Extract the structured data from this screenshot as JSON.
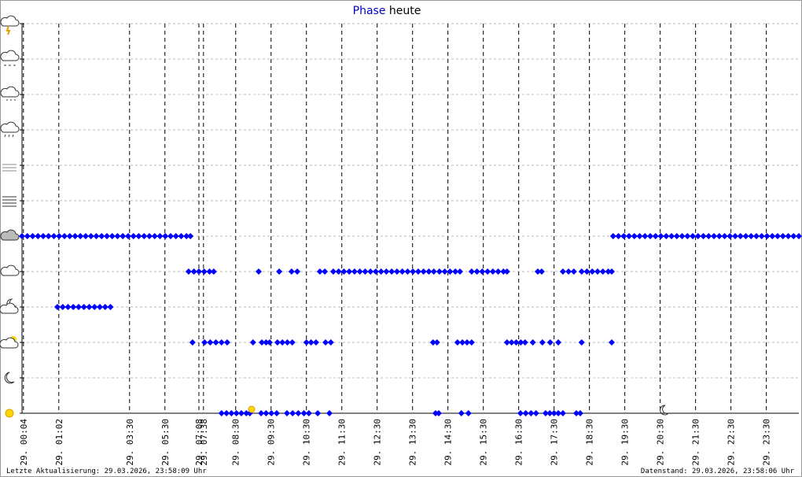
{
  "chart_data": {
    "type": "scatter",
    "title": {
      "highlight": "Phase",
      "rest": "heute"
    },
    "xlim": [
      0,
      21.96
    ],
    "ylim": [
      0,
      11
    ],
    "yticks": [
      0,
      1,
      2,
      3,
      4,
      5,
      6,
      7,
      8,
      9,
      10,
      11
    ],
    "xticks": [
      {
        "value": 0.04,
        "label": "29. 00:04"
      },
      {
        "value": 1.04,
        "label": "29. 01:02"
      },
      {
        "value": 3.04,
        "label": "29. 03:30"
      },
      {
        "value": 4.04,
        "label": "29. 05:30"
      },
      {
        "value": 5.0,
        "label": "29. 07:08"
      },
      {
        "value": 5.13,
        "label": "29. 07:38"
      },
      {
        "value": 6.04,
        "label": "29. 08:30"
      },
      {
        "value": 7.04,
        "label": "29. 09:30"
      },
      {
        "value": 8.04,
        "label": "29. 10:30"
      },
      {
        "value": 9.04,
        "label": "29. 11:30"
      },
      {
        "value": 10.04,
        "label": "29. 12:30"
      },
      {
        "value": 11.04,
        "label": "29. 13:30"
      },
      {
        "value": 12.04,
        "label": "29. 14:30"
      },
      {
        "value": 13.04,
        "label": "29. 15:30"
      },
      {
        "value": 14.04,
        "label": "29. 16:30"
      },
      {
        "value": 15.04,
        "label": "29. 17:30"
      },
      {
        "value": 16.04,
        "label": "29. 18:30"
      },
      {
        "value": 17.04,
        "label": "29. 19:30"
      },
      {
        "value": 18.04,
        "label": "29. 20:30"
      },
      {
        "value": 19.04,
        "label": "29. 21:30"
      },
      {
        "value": 20.04,
        "label": "29. 22:30"
      },
      {
        "value": 21.04,
        "label": "29. 23:30"
      }
    ],
    "grid": true,
    "color": "#0000ff",
    "series": [
      {
        "x": [
          0,
          0.15,
          0.3,
          0.45,
          0.6,
          0.75,
          0.9,
          1.05,
          1.2,
          1.35,
          1.5,
          1.65,
          1.8,
          1.95,
          2.1,
          2.25,
          2.4,
          2.55,
          2.7,
          2.85,
          3.0,
          3.15,
          3.3,
          3.45,
          3.6,
          3.75,
          3.9,
          4.05,
          4.2,
          4.35,
          4.5,
          4.65,
          4.76
        ],
        "values": [
          5,
          5,
          5,
          5,
          5,
          5,
          5,
          5,
          5,
          5,
          5,
          5,
          5,
          5,
          5,
          5,
          5,
          5,
          5,
          5,
          5,
          5,
          5,
          5,
          5,
          5,
          5,
          5,
          5,
          5,
          5,
          5,
          5
        ]
      },
      {
        "x": [
          1.0,
          1.15,
          1.3,
          1.45,
          1.6,
          1.75,
          1.9,
          2.05,
          2.2,
          2.35,
          2.5
        ],
        "values": [
          3,
          3,
          3,
          3,
          3,
          3,
          3,
          3,
          3,
          3,
          3
        ]
      },
      {
        "x": [
          4.71,
          4.86,
          5.0,
          5.15,
          5.3,
          5.42,
          6.69,
          7.27,
          7.62,
          7.78,
          8.42,
          8.56,
          8.8,
          8.95,
          9.1,
          9.25,
          9.4,
          9.55,
          9.7,
          9.85,
          10.0,
          10.15,
          10.3,
          10.45,
          10.6,
          10.75,
          10.9,
          11.05,
          11.2,
          11.35,
          11.5,
          11.64,
          11.8,
          11.95,
          12.1,
          12.25,
          12.38,
          12.71,
          12.86,
          13.01,
          13.16,
          13.31,
          13.46,
          13.61,
          13.71,
          14.58,
          14.69,
          15.29,
          15.45,
          15.6,
          15.82,
          15.97,
          16.12,
          16.27,
          16.42,
          16.57,
          16.67
        ],
        "values": [
          4,
          4,
          4,
          4,
          4,
          4,
          4,
          4,
          4,
          4,
          4,
          4,
          4,
          4,
          4,
          4,
          4,
          4,
          4,
          4,
          4,
          4,
          4,
          4,
          4,
          4,
          4,
          4,
          4,
          4,
          4,
          4,
          4,
          4,
          4,
          4,
          4,
          4,
          4,
          4,
          4,
          4,
          4,
          4,
          4,
          4,
          4,
          4,
          4,
          4,
          4,
          4,
          4,
          4,
          4,
          4,
          4
        ]
      },
      {
        "x": [
          4.82,
          5.16,
          5.32,
          5.48,
          5.64,
          5.8,
          6.53,
          6.78,
          6.9,
          7.0,
          7.22,
          7.36,
          7.5,
          7.64,
          8.04,
          8.17,
          8.31,
          8.58,
          8.73,
          11.62,
          11.73,
          12.31,
          12.45,
          12.58,
          12.71,
          13.71,
          13.84,
          13.97,
          14.1,
          14.22,
          14.44,
          14.71,
          14.93,
          15.16,
          15.82,
          16.67
        ],
        "values": [
          2,
          2,
          2,
          2,
          2,
          2,
          2,
          2,
          2,
          2,
          2,
          2,
          2,
          2,
          2,
          2,
          2,
          2,
          2,
          2,
          2,
          2,
          2,
          2,
          2,
          2,
          2,
          2,
          2,
          2,
          2,
          2,
          2,
          2,
          2,
          2
        ]
      },
      {
        "x": [
          5.64,
          5.78,
          5.92,
          6.06,
          6.2,
          6.34,
          6.44,
          6.76,
          6.9,
          7.05,
          7.2,
          7.49,
          7.65,
          7.81,
          7.97,
          8.11,
          8.36,
          8.69,
          11.69,
          11.78,
          12.42,
          12.62,
          14.09,
          14.24,
          14.39,
          14.53,
          14.8,
          14.92,
          15.04,
          15.16,
          15.29,
          15.67,
          15.78
        ],
        "values": [
          0,
          0,
          0,
          0,
          0,
          0,
          0,
          0,
          0,
          0,
          0,
          0,
          0,
          0,
          0,
          0,
          0,
          0,
          0,
          0,
          0,
          0,
          0,
          0,
          0,
          0,
          0,
          0,
          0,
          0,
          0,
          0,
          0
        ]
      },
      {
        "x": [
          16.71,
          16.86,
          17.01,
          17.16,
          17.31,
          17.46,
          17.61,
          17.76,
          17.91,
          18.06,
          18.21,
          18.36,
          18.51,
          18.66,
          18.81,
          18.96,
          19.11,
          19.26,
          19.41,
          19.56,
          19.71,
          19.86,
          20.01,
          20.16,
          20.31,
          20.46,
          20.61,
          20.76,
          20.91,
          21.06,
          21.21,
          21.36,
          21.51,
          21.66,
          21.81,
          21.96
        ],
        "values": [
          5,
          5,
          5,
          5,
          5,
          5,
          5,
          5,
          5,
          5,
          5,
          5,
          5,
          5,
          5,
          5,
          5,
          5,
          5,
          5,
          5,
          5,
          5,
          5,
          5,
          5,
          5,
          5,
          5,
          5,
          5,
          5,
          5,
          5,
          5,
          5
        ]
      }
    ],
    "footer": {
      "left": "Letzte Aktualisierung: 29.03.2026, 23:58:09 Uhr",
      "right": "Datenstand: 29.03.2026, 23:58:06 Uhr"
    }
  }
}
